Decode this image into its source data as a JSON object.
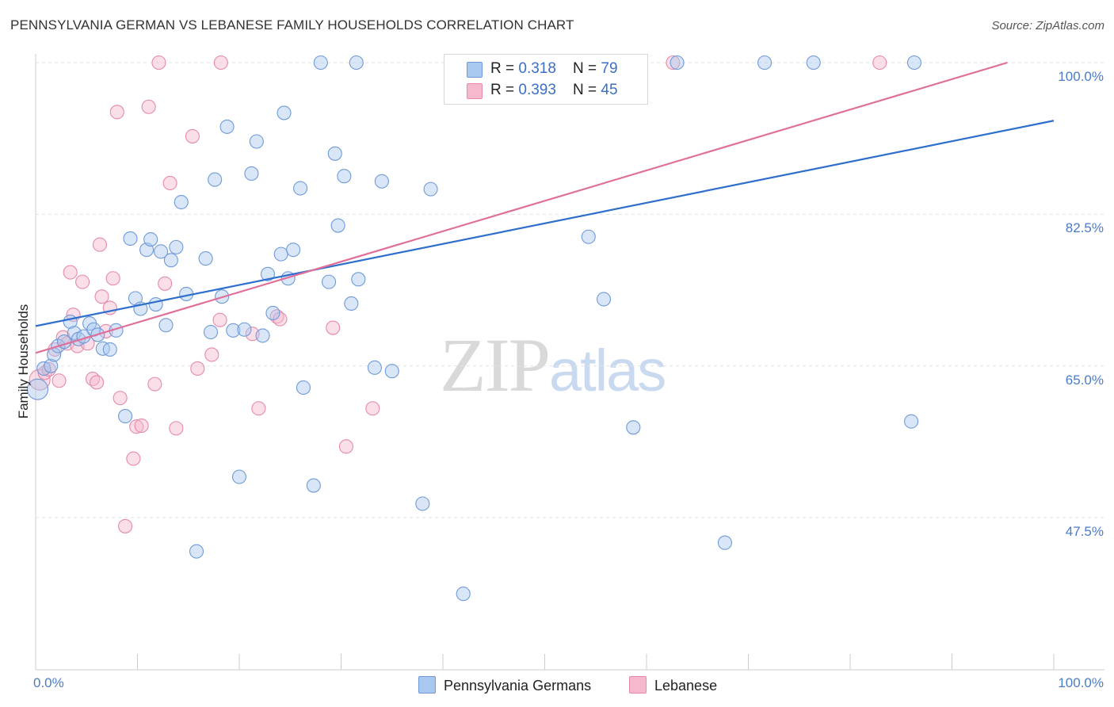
{
  "title": "PENNSYLVANIA GERMAN VS LEBANESE FAMILY HOUSEHOLDS CORRELATION CHART",
  "source": "Source: ZipAtlas.com",
  "watermark": {
    "zip": "ZIP",
    "atlas": "atlas"
  },
  "legend": {
    "rows": [
      {
        "r_label": "R = ",
        "r_value": "0.318",
        "n_label": "N = ",
        "n_value": "79"
      },
      {
        "r_label": "R = ",
        "r_value": "0.393",
        "n_label": "N = ",
        "n_value": "45"
      }
    ]
  },
  "colors": {
    "blue_fill": "#a9c8ef",
    "blue_stroke": "#6f9ad8",
    "blue_line": "#2f6fcc",
    "pink_fill": "#f6b8cc",
    "pink_stroke": "#e58aa8",
    "pink_line": "#e0709a",
    "grid": "#e3e3e3",
    "tick_text": "#4a7cc7"
  },
  "chart_data": {
    "type": "scatter",
    "title": "PENNSYLVANIA GERMAN VS LEBANESE FAMILY HOUSEHOLDS CORRELATION CHART",
    "xlabel": "",
    "ylabel": "Family Households",
    "xlim": [
      0,
      100
    ],
    "ylim": [
      34,
      101.5
    ],
    "x_tick_labels": [
      "0.0%",
      "100.0%"
    ],
    "y_ticks": [
      {
        "value": 100.0,
        "label": "100.0%"
      },
      {
        "value": 82.5,
        "label": "82.5%"
      },
      {
        "value": 65.0,
        "label": "65.0%"
      },
      {
        "value": 47.5,
        "label": "47.5%"
      }
    ],
    "grid": true,
    "legend_position": "top-center",
    "series": [
      {
        "name": "Pennsylvania Germans",
        "color": "#a9c8ef",
        "trend": {
          "x": [
            0,
            100
          ],
          "y": [
            69.6,
            93.3
          ]
        },
        "points": [
          [
            0.2,
            62.3
          ],
          [
            0.8,
            64.7
          ],
          [
            1.5,
            65.0
          ],
          [
            1.8,
            66.3
          ],
          [
            2.2,
            67.3
          ],
          [
            2.8,
            67.8
          ],
          [
            3.4,
            70.1
          ],
          [
            3.8,
            68.8
          ],
          [
            4.2,
            68.1
          ],
          [
            4.7,
            68.4
          ],
          [
            5.3,
            69.9
          ],
          [
            5.7,
            69.2
          ],
          [
            6.1,
            68.6
          ],
          [
            6.6,
            67.0
          ],
          [
            7.3,
            66.9
          ],
          [
            7.9,
            69.1
          ],
          [
            8.8,
            59.2
          ],
          [
            9.3,
            79.7
          ],
          [
            9.8,
            72.8
          ],
          [
            10.3,
            71.6
          ],
          [
            10.9,
            78.4
          ],
          [
            11.3,
            79.6
          ],
          [
            11.8,
            72.1
          ],
          [
            12.3,
            78.2
          ],
          [
            12.8,
            69.7
          ],
          [
            13.3,
            77.2
          ],
          [
            13.8,
            78.7
          ],
          [
            14.3,
            83.9
          ],
          [
            14.8,
            73.3
          ],
          [
            15.8,
            43.6
          ],
          [
            16.7,
            77.4
          ],
          [
            17.2,
            68.9
          ],
          [
            17.6,
            86.5
          ],
          [
            18.3,
            73.0
          ],
          [
            18.8,
            92.6
          ],
          [
            19.4,
            69.1
          ],
          [
            20.0,
            52.2
          ],
          [
            20.5,
            69.2
          ],
          [
            21.2,
            87.2
          ],
          [
            21.7,
            90.9
          ],
          [
            22.3,
            68.5
          ],
          [
            22.8,
            75.6
          ],
          [
            23.3,
            71.1
          ],
          [
            24.1,
            77.9
          ],
          [
            24.4,
            94.2
          ],
          [
            24.8,
            75.1
          ],
          [
            25.3,
            78.4
          ],
          [
            26.0,
            85.5
          ],
          [
            26.3,
            62.5
          ],
          [
            27.3,
            51.2
          ],
          [
            28.0,
            100.0
          ],
          [
            28.8,
            74.7
          ],
          [
            29.4,
            89.5
          ],
          [
            29.7,
            81.2
          ],
          [
            30.3,
            86.9
          ],
          [
            31.0,
            72.2
          ],
          [
            31.5,
            100.0
          ],
          [
            31.7,
            75.0
          ],
          [
            33.3,
            64.8
          ],
          [
            34.0,
            86.3
          ],
          [
            35.0,
            64.4
          ],
          [
            38.0,
            49.1
          ],
          [
            38.8,
            85.4
          ],
          [
            41.2,
            100.0
          ],
          [
            42.0,
            38.7
          ],
          [
            46.0,
            100.0
          ],
          [
            48.5,
            100.0
          ],
          [
            50.0,
            100.0
          ],
          [
            54.0,
            100.0
          ],
          [
            54.3,
            79.9
          ],
          [
            55.8,
            72.7
          ],
          [
            58.0,
            100.0
          ],
          [
            58.7,
            57.9
          ],
          [
            63.0,
            100.0
          ],
          [
            67.7,
            44.6
          ],
          [
            71.6,
            100.0
          ],
          [
            76.4,
            100.0
          ],
          [
            86.3,
            100.0
          ],
          [
            86.0,
            58.6
          ]
        ]
      },
      {
        "name": "Lebanese",
        "color": "#f6b8cc",
        "trend": {
          "x": [
            0,
            100
          ],
          "y": [
            66.5,
            101.6
          ]
        },
        "points": [
          [
            0.4,
            63.4
          ],
          [
            0.9,
            64.2
          ],
          [
            1.3,
            64.6
          ],
          [
            1.9,
            66.9
          ],
          [
            2.3,
            63.3
          ],
          [
            2.7,
            68.3
          ],
          [
            3.1,
            67.6
          ],
          [
            3.4,
            75.8
          ],
          [
            3.7,
            70.9
          ],
          [
            4.1,
            67.3
          ],
          [
            4.6,
            74.7
          ],
          [
            5.1,
            67.6
          ],
          [
            5.6,
            63.5
          ],
          [
            6.0,
            63.1
          ],
          [
            6.3,
            79.0
          ],
          [
            6.5,
            73.0
          ],
          [
            6.9,
            69.0
          ],
          [
            7.3,
            71.7
          ],
          [
            7.6,
            75.1
          ],
          [
            8.0,
            94.3
          ],
          [
            8.3,
            61.3
          ],
          [
            8.8,
            46.5
          ],
          [
            9.6,
            54.3
          ],
          [
            9.9,
            58.0
          ],
          [
            10.4,
            58.1
          ],
          [
            11.1,
            94.9
          ],
          [
            11.7,
            62.9
          ],
          [
            12.1,
            100.0
          ],
          [
            12.7,
            74.5
          ],
          [
            13.2,
            86.1
          ],
          [
            13.8,
            57.8
          ],
          [
            15.4,
            91.5
          ],
          [
            15.9,
            64.7
          ],
          [
            17.3,
            66.3
          ],
          [
            18.1,
            70.3
          ],
          [
            18.2,
            100.0
          ],
          [
            21.3,
            68.7
          ],
          [
            21.9,
            60.1
          ],
          [
            23.7,
            70.7
          ],
          [
            24.0,
            70.4
          ],
          [
            29.2,
            69.4
          ],
          [
            30.5,
            55.7
          ],
          [
            33.1,
            60.1
          ],
          [
            62.6,
            100.0
          ],
          [
            82.9,
            100.0
          ]
        ]
      }
    ]
  }
}
